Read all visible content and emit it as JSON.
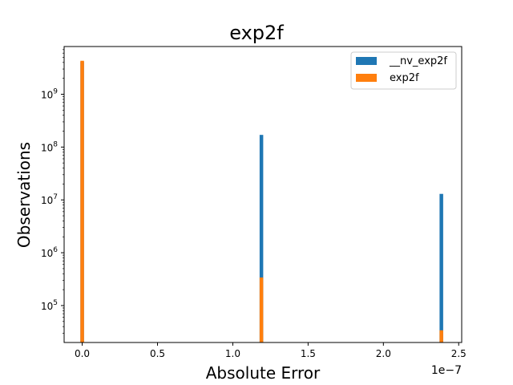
{
  "chart_data": {
    "type": "bar",
    "title": "exp2f",
    "xlabel": "Absolute Error",
    "ylabel": "Observations",
    "x_offset_label": "1e−7",
    "x_scale_exponent": -7,
    "yscale": "log",
    "xlim": [
      -1.2e-08,
      2.52e-07
    ],
    "ylim": [
      20000,
      8000000000
    ],
    "grid": false,
    "legend_position": "top-right",
    "bar_width": 2.4e-09,
    "x_ticks": [
      {
        "value": 0,
        "label": "0.0"
      },
      {
        "value": 5e-08,
        "label": "0.5"
      },
      {
        "value": 1e-07,
        "label": "1.0"
      },
      {
        "value": 1.5e-07,
        "label": "1.5"
      },
      {
        "value": 2e-07,
        "label": "2.0"
      },
      {
        "value": 2.5e-07,
        "label": "2.5"
      }
    ],
    "y_ticks": [
      {
        "value": 100000,
        "base": "10",
        "exp": "5"
      },
      {
        "value": 1000000,
        "base": "10",
        "exp": "6"
      },
      {
        "value": 10000000,
        "base": "10",
        "exp": "7"
      },
      {
        "value": 100000000,
        "base": "10",
        "exp": "8"
      },
      {
        "value": 1000000000,
        "base": "10",
        "exp": "9"
      }
    ],
    "series": [
      {
        "name": "__nv_exp2f",
        "color": "#1f77b4",
        "points": [
          {
            "x": 0,
            "y": 4100000000
          },
          {
            "x": 1.19e-07,
            "y": 170000000
          },
          {
            "x": 2.385e-07,
            "y": 13000000
          }
        ]
      },
      {
        "name": "exp2f",
        "color": "#ff7f0e",
        "points": [
          {
            "x": 0,
            "y": 4300000000
          },
          {
            "x": 1.19e-07,
            "y": 340000
          },
          {
            "x": 2.385e-07,
            "y": 34000
          }
        ]
      }
    ]
  }
}
